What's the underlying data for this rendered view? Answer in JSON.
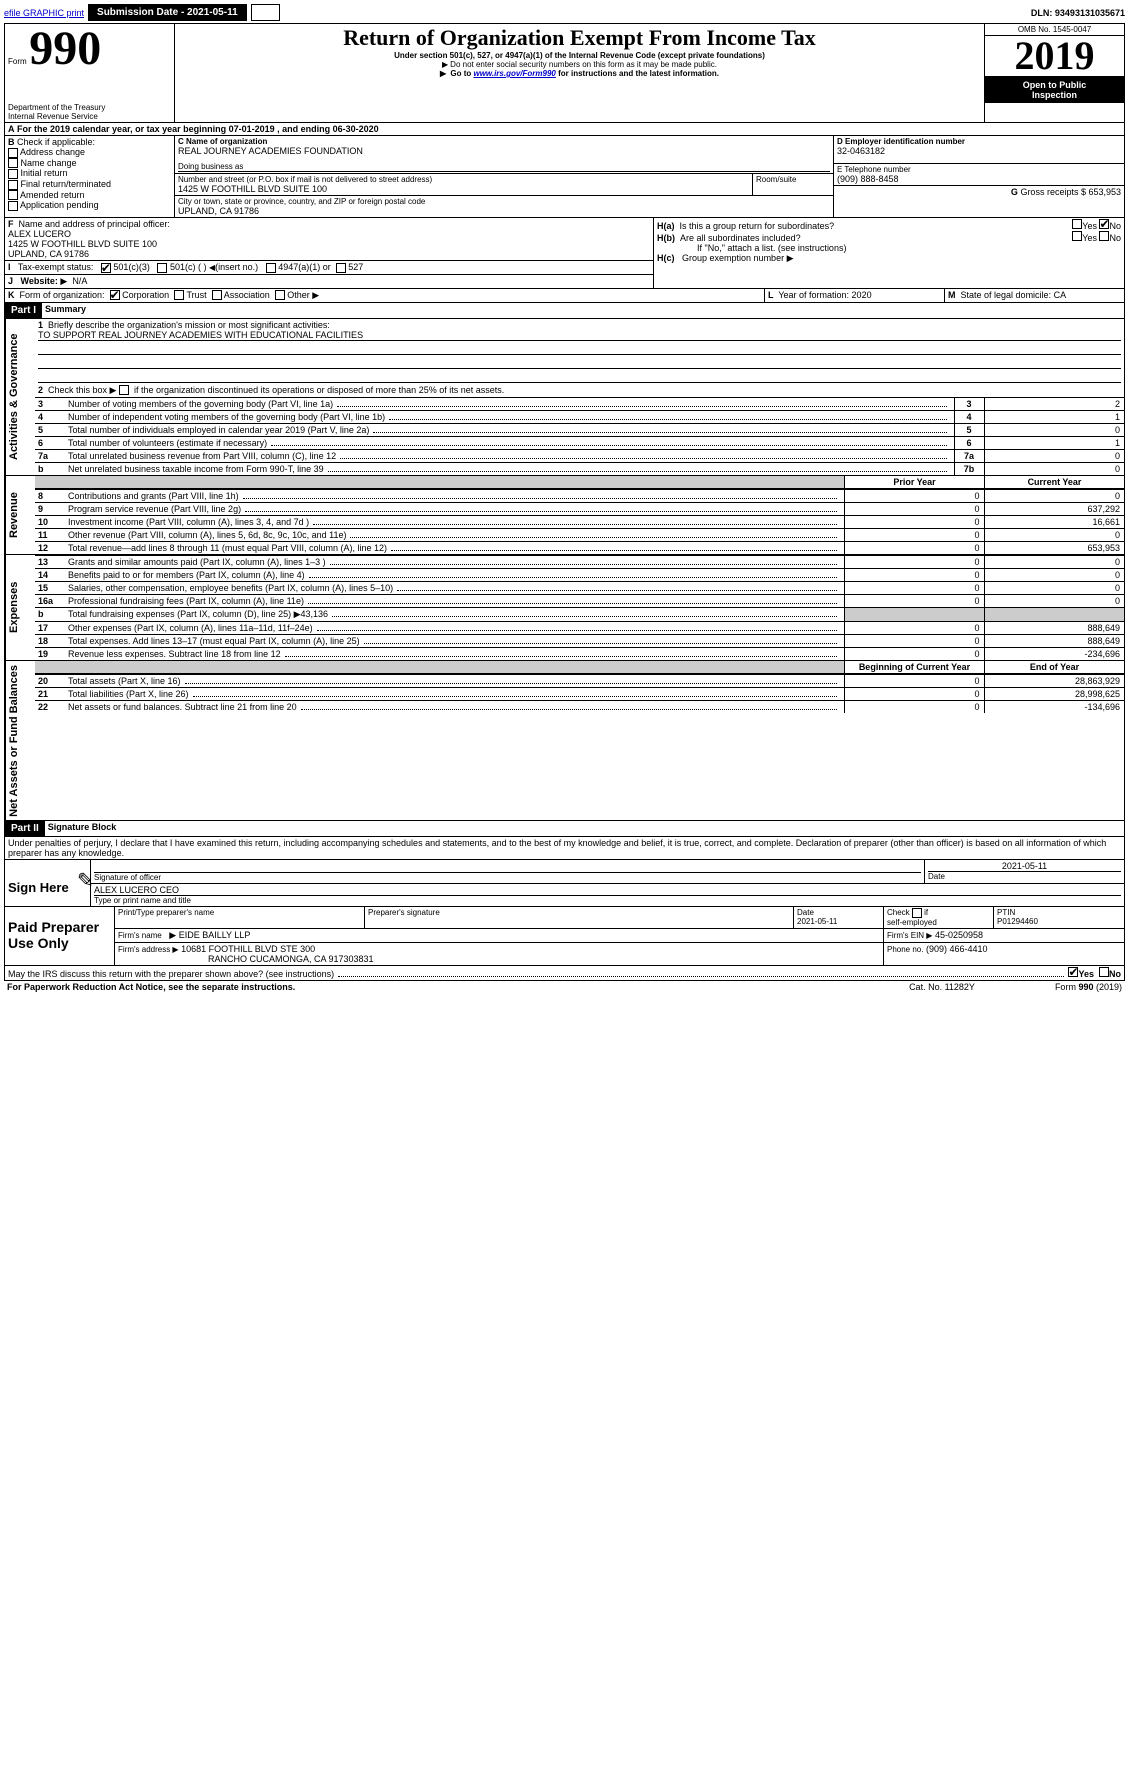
{
  "topbar": {
    "efile": "efile GRAPHIC print",
    "submission_label": "Submission Date - 2021-05-11",
    "dln": "DLN: 93493131035671"
  },
  "header": {
    "form_word": "Form",
    "form_num": "990",
    "dept": "Department of the Treasury",
    "irs": "Internal Revenue Service",
    "title": "Return of Organization Exempt From Income Tax",
    "subtitle": "Under section 501(c), 527, or 4947(a)(1) of the Internal Revenue Code (except private foundations)",
    "notice1": "Do not enter social security numbers on this form as it may be made public.",
    "notice2_prefix": "Go to ",
    "notice2_link": "www.irs.gov/Form990",
    "notice2_suffix": " for instructions and the latest information.",
    "omb": "OMB No. 1545-0047",
    "year": "2019",
    "open1": "Open to Public",
    "open2": "Inspection"
  },
  "section_a": {
    "label": "A",
    "text": "For the 2019 calendar year, or tax year beginning 07-01-2019    , and ending 06-30-2020"
  },
  "section_b": {
    "label": "B",
    "check_label": "Check if applicable:",
    "items": [
      "Address change",
      "Name change",
      "Initial return",
      "Final return/terminated",
      "Amended return",
      "Application pending"
    ]
  },
  "section_c": {
    "name_label": "C Name of organization",
    "name": "REAL JOURNEY ACADEMIES FOUNDATION",
    "dba_label": "Doing business as",
    "street_label": "Number and street (or P.O. box if mail is not delivered to street address)",
    "room_label": "Room/suite",
    "street": "1425 W FOOTHILL BLVD SUITE 100",
    "city_label": "City or town, state or province, country, and ZIP or foreign postal code",
    "city": "UPLAND, CA  91786"
  },
  "section_d": {
    "label": "D Employer identification number",
    "value": "32-0463182"
  },
  "section_e": {
    "label": "E Telephone number",
    "value": "(909) 888-8458"
  },
  "section_g": {
    "label": "G",
    "text": "Gross receipts $ 653,953"
  },
  "section_f": {
    "label": "F",
    "text": "Name and address of principal officer:",
    "name": "ALEX LUCERO",
    "line1": "1425 W FOOTHILL BLVD SUITE 100",
    "line2": "UPLAND, CA  91786"
  },
  "section_h": {
    "ha": "H(a)",
    "ha_text": "Is this a group return for subordinates?",
    "hb": "H(b)",
    "hb_text": "Are all subordinates included?",
    "hb_note": "If \"No,\" attach a list. (see instructions)",
    "hc": "H(c)",
    "hc_text": "Group exemption number",
    "yes": "Yes",
    "no": "No"
  },
  "section_i": {
    "label": "I",
    "text": "Tax-exempt status:",
    "opts": [
      "501(c)(3)",
      "501(c) (   )",
      "(insert no.)",
      "4947(a)(1) or",
      "527"
    ]
  },
  "section_j": {
    "label": "J",
    "text": "Website:",
    "value": "N/A"
  },
  "section_k": {
    "label": "K",
    "text": "Form of organization:",
    "opts": [
      "Corporation",
      "Trust",
      "Association",
      "Other"
    ]
  },
  "section_l": {
    "label": "L",
    "text": "Year of formation: 2020"
  },
  "section_m": {
    "label": "M",
    "text": "State of legal domicile: CA"
  },
  "part1": {
    "header": "Part I",
    "title": "Summary",
    "line1_label": "1",
    "line1_text": "Briefly describe the organization's mission or most significant activities:",
    "line1_value": "TO SUPPORT REAL JOURNEY ACADEMIES WITH EDUCATIONAL FACILITIES",
    "line2_label": "2",
    "line2_text": "Check this box ▶",
    "line2_suffix": "if the organization discontinued its operations or disposed of more than 25% of its net assets.",
    "sidebars": {
      "gov": "Activities & Governance",
      "rev": "Revenue",
      "exp": "Expenses",
      "net": "Net Assets or Fund Balances"
    },
    "col_prior": "Prior Year",
    "col_current": "Current Year",
    "col_begin": "Beginning of Current Year",
    "col_end": "End of Year",
    "rows_gov": [
      {
        "n": "3",
        "t": "Number of voting members of the governing body (Part VI, line 1a)",
        "box": "3",
        "v": "2"
      },
      {
        "n": "4",
        "t": "Number of independent voting members of the governing body (Part VI, line 1b)",
        "box": "4",
        "v": "1"
      },
      {
        "n": "5",
        "t": "Total number of individuals employed in calendar year 2019 (Part V, line 2a)",
        "box": "5",
        "v": "0"
      },
      {
        "n": "6",
        "t": "Total number of volunteers (estimate if necessary)",
        "box": "6",
        "v": "1"
      },
      {
        "n": "7a",
        "t": "Total unrelated business revenue from Part VIII, column (C), line 12",
        "box": "7a",
        "v": "0"
      },
      {
        "n": "b",
        "t": "Net unrelated business taxable income from Form 990-T, line 39",
        "box": "7b",
        "v": "0"
      }
    ],
    "rows_rev": [
      {
        "n": "8",
        "t": "Contributions and grants (Part VIII, line 1h)",
        "p": "0",
        "c": "0"
      },
      {
        "n": "9",
        "t": "Program service revenue (Part VIII, line 2g)",
        "p": "0",
        "c": "637,292"
      },
      {
        "n": "10",
        "t": "Investment income (Part VIII, column (A), lines 3, 4, and 7d )",
        "p": "0",
        "c": "16,661"
      },
      {
        "n": "11",
        "t": "Other revenue (Part VIII, column (A), lines 5, 6d, 8c, 9c, 10c, and 11e)",
        "p": "0",
        "c": "0"
      },
      {
        "n": "12",
        "t": "Total revenue—add lines 8 through 11 (must equal Part VIII, column (A), line 12)",
        "p": "0",
        "c": "653,953"
      }
    ],
    "rows_exp": [
      {
        "n": "13",
        "t": "Grants and similar amounts paid (Part IX, column (A), lines 1–3 )",
        "p": "0",
        "c": "0"
      },
      {
        "n": "14",
        "t": "Benefits paid to or for members (Part IX, column (A), line 4)",
        "p": "0",
        "c": "0"
      },
      {
        "n": "15",
        "t": "Salaries, other compensation, employee benefits (Part IX, column (A), lines 5–10)",
        "p": "0",
        "c": "0"
      },
      {
        "n": "16a",
        "t": "Professional fundraising fees (Part IX, column (A), line 11e)",
        "p": "0",
        "c": "0"
      },
      {
        "n": "b",
        "t": "Total fundraising expenses (Part IX, column (D), line 25) ▶43,136",
        "p": "",
        "c": "",
        "shade": true
      },
      {
        "n": "17",
        "t": "Other expenses (Part IX, column (A), lines 11a–11d, 11f–24e)",
        "p": "0",
        "c": "888,649"
      },
      {
        "n": "18",
        "t": "Total expenses. Add lines 13–17 (must equal Part IX, column (A), line 25)",
        "p": "0",
        "c": "888,649"
      },
      {
        "n": "19",
        "t": "Revenue less expenses. Subtract line 18 from line 12",
        "p": "0",
        "c": "-234,696"
      }
    ],
    "rows_net": [
      {
        "n": "20",
        "t": "Total assets (Part X, line 16)",
        "p": "0",
        "c": "28,863,929"
      },
      {
        "n": "21",
        "t": "Total liabilities (Part X, line 26)",
        "p": "0",
        "c": "28,998,625"
      },
      {
        "n": "22",
        "t": "Net assets or fund balances. Subtract line 21 from line 20",
        "p": "0",
        "c": "-134,696"
      }
    ]
  },
  "part2": {
    "header": "Part II",
    "title": "Signature Block",
    "declaration": "Under penalties of perjury, I declare that I have examined this return, including accompanying schedules and statements, and to the best of my knowledge and belief, it is true, correct, and complete. Declaration of preparer (other than officer) is based on all information of which preparer has any knowledge.",
    "sign_here": "Sign Here",
    "sig_officer": "Signature of officer",
    "sig_date": "2021-05-11",
    "date_label": "Date",
    "officer_name": "ALEX LUCERO  CEO",
    "type_name": "Type or print name and title",
    "paid": "Paid Preparer Use Only",
    "prep_name_label": "Print/Type preparer's name",
    "prep_sig_label": "Preparer's signature",
    "prep_date_label": "Date",
    "prep_date": "2021-05-11",
    "check_self": "Check",
    "self_emp": "self-employed",
    "chk_if": "if",
    "ptin_label": "PTIN",
    "ptin": "P01294460",
    "firm_name_label": "Firm's name",
    "firm_name": "EIDE BAILLY LLP",
    "firm_ein_label": "Firm's EIN ▶",
    "firm_ein": "45-0250958",
    "firm_addr_label": "Firm's address ▶",
    "firm_addr1": "10681 FOOTHILL BLVD STE 300",
    "firm_addr2": "RANCHO CUCAMONGA, CA  917303831",
    "phone_label": "Phone no.",
    "phone": "(909) 466-4410",
    "may_irs": "May the IRS discuss this return with the preparer shown above? (see instructions)",
    "paperwork": "For Paperwork Reduction Act Notice, see the separate instructions.",
    "cat": "Cat. No. 11282Y",
    "form_foot": "Form 990 (2019)",
    "yes": "Yes",
    "no": "No"
  }
}
